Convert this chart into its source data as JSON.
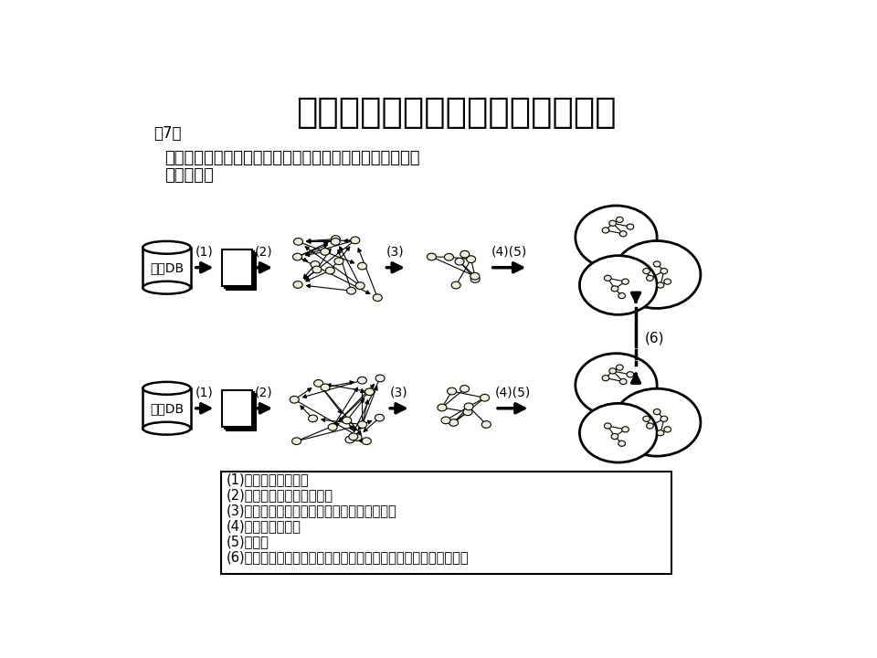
{
  "title": "自然言語処理による類似度の測定",
  "subtitle": "第7回",
  "desc1": "論文クラスタ、特許クラスタに対するテキスト分析による",
  "desc2": "類似度測定",
  "db_top": "特許DB",
  "db_bottom": "論文DB",
  "legend_lines": [
    "(1)検索クエリで検索",
    "(2)引用ネットワークを作成",
    "(3)引用ネットワーク中の最大連結成分を抽出",
    "(4)クラスタリング",
    "(5)可視化",
    "(6)各論文クラスターと各特許クラスターの意味的な類似度を測定"
  ],
  "arrow_top": [
    "(1)",
    "(2)",
    "(3)",
    "(4)(5)"
  ],
  "arrow_bottom": [
    "(1)",
    "(2)",
    "(3)",
    "(4)(5)"
  ],
  "label_6": "(6)",
  "node_color": "#f0eed8",
  "title_fontsize": 28,
  "text_fontsize": 13,
  "small_fontsize": 11
}
